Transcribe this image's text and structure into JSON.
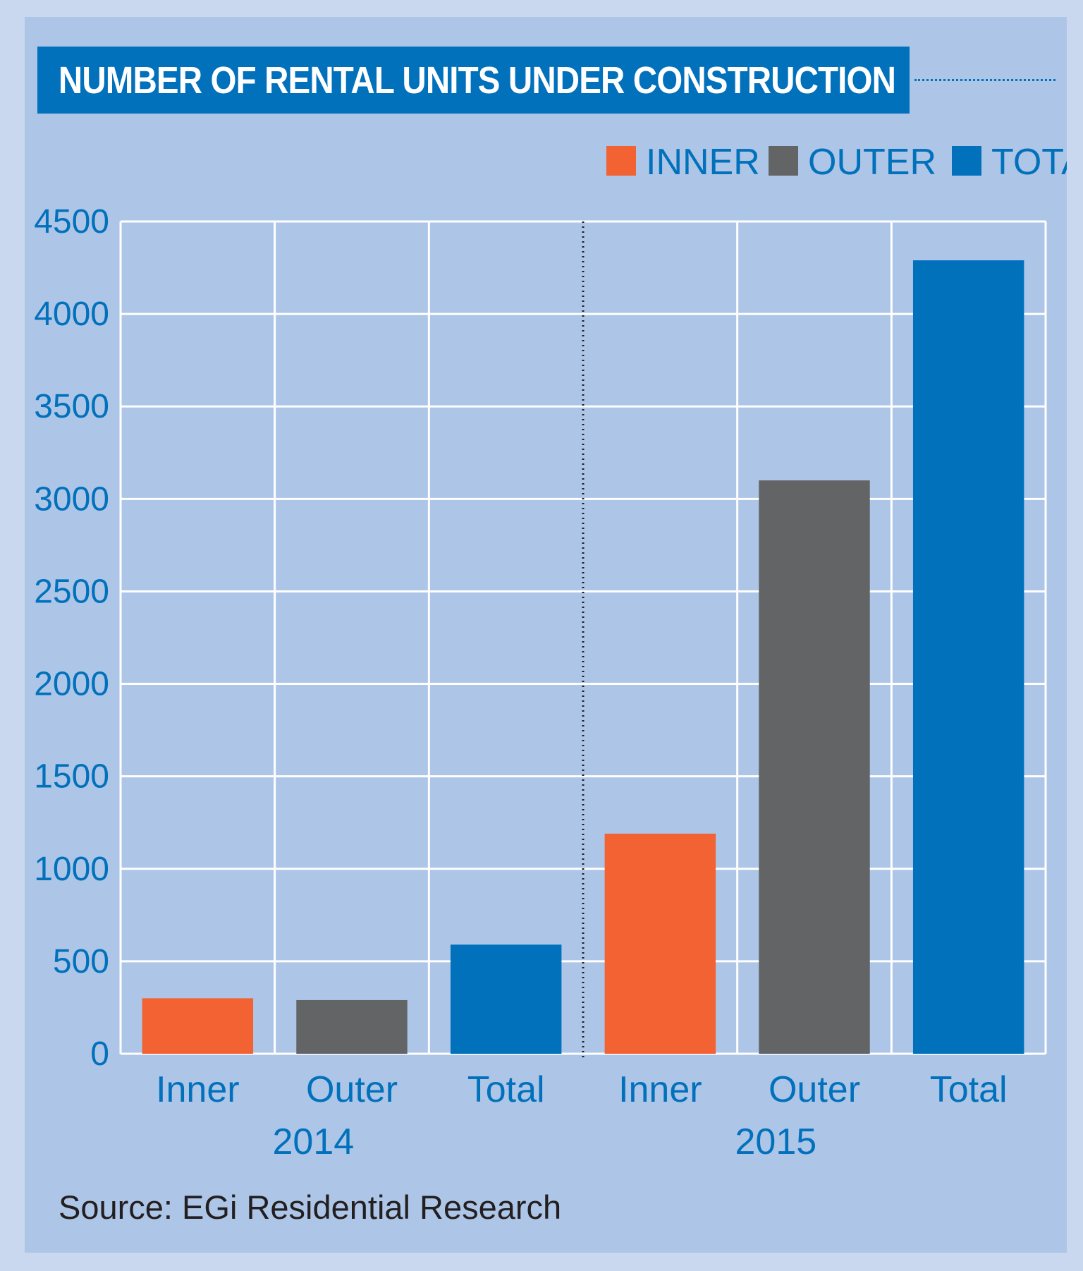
{
  "chart_data": {
    "type": "bar",
    "title": "NUMBER OF RENTAL UNITS UNDER CONSTRUCTION",
    "xlabel": "",
    "ylabel": "",
    "ylim": [
      0,
      4500
    ],
    "yticks": [
      "0",
      "500",
      "1000",
      "1500",
      "2000",
      "2500",
      "3000",
      "3500",
      "4000",
      "4500"
    ],
    "grid": true,
    "legend_position": "top-right",
    "legend": [
      {
        "label": "INNER",
        "color": "#f26232"
      },
      {
        "label": "OUTER",
        "color": "#636466"
      },
      {
        "label": "TOTAL",
        "color": "#0171bc"
      }
    ],
    "groups": [
      {
        "label": "2014",
        "bars": [
          {
            "category": "Inner",
            "series": "INNER",
            "value": 300
          },
          {
            "category": "Outer",
            "series": "OUTER",
            "value": 290
          },
          {
            "category": "Total",
            "series": "TOTAL",
            "value": 590
          }
        ]
      },
      {
        "label": "2015",
        "bars": [
          {
            "category": "Inner",
            "series": "INNER",
            "value": 1190
          },
          {
            "category": "Outer",
            "series": "OUTER",
            "value": 3100
          },
          {
            "category": "Total",
            "series": "TOTAL",
            "value": 4290
          }
        ]
      }
    ],
    "source": "Source: EGi Residential Research"
  },
  "colors": {
    "background": "#adc5e6",
    "grid": "#ffffff",
    "axis_text": "#0171bc",
    "inner": "#f26232",
    "outer": "#636466",
    "total": "#0171bc"
  }
}
